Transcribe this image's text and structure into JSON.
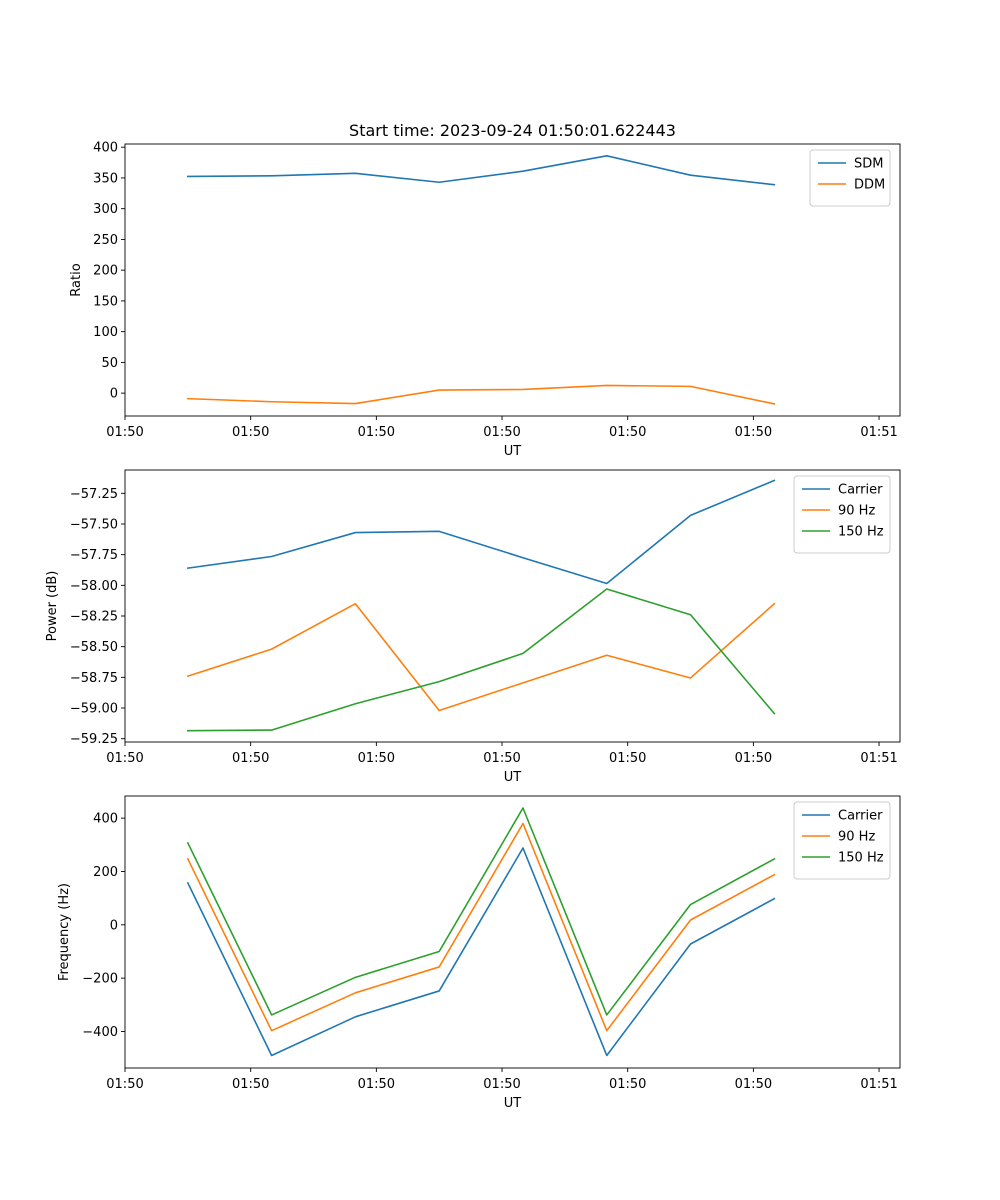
{
  "chart_data": [
    {
      "type": "line",
      "title": "Start time: 2023-09-24 01:50:01.622443",
      "xlabel": "UT",
      "ylabel": "Ratio",
      "x": [
        0.75,
        1.75,
        2.75,
        3.75,
        4.75,
        5.75,
        6.75,
        7.75
      ],
      "xlim": [
        0,
        9.25
      ],
      "xticks": [
        0.0,
        1.5,
        3.0,
        4.5,
        6.0,
        7.5,
        9.0
      ],
      "xtick_labels": [
        "01:50",
        "01:50",
        "01:50",
        "01:50",
        "01:50",
        "01:50",
        "01:51"
      ],
      "ylim": [
        -37.2,
        405.2
      ],
      "yticks": [
        0,
        50,
        100,
        150,
        200,
        250,
        300,
        350,
        400
      ],
      "ytick_labels": [
        "0",
        "50",
        "100",
        "150",
        "200",
        "250",
        "300",
        "350",
        "400"
      ],
      "legend": "top-right",
      "series": [
        {
          "name": "SDM",
          "color": "#1f77b4",
          "values": [
            352.5,
            353.5,
            357.5,
            343,
            361,
            386,
            354.5,
            339
          ]
        },
        {
          "name": "DDM",
          "color": "#ff7f0e",
          "values": [
            -9,
            -14,
            -17,
            5,
            6,
            12.5,
            11,
            -17.5
          ]
        }
      ]
    },
    {
      "type": "line",
      "title": "",
      "xlabel": "UT",
      "ylabel": "Power (dB)",
      "x": [
        0.75,
        1.75,
        2.75,
        3.75,
        4.75,
        5.75,
        6.75,
        7.75
      ],
      "xlim": [
        0,
        9.25
      ],
      "xticks": [
        0.0,
        1.5,
        3.0,
        4.5,
        6.0,
        7.5,
        9.0
      ],
      "xtick_labels": [
        "01:50",
        "01:50",
        "01:50",
        "01:50",
        "01:50",
        "01:50",
        "01:51"
      ],
      "ylim": [
        -59.277,
        -57.06
      ],
      "yticks": [
        -59.25,
        -59.0,
        -58.75,
        -58.5,
        -58.25,
        -58.0,
        -57.75,
        -57.5,
        -57.25
      ],
      "ytick_labels": [
        "−59.25",
        "−59.00",
        "−58.75",
        "−58.50",
        "−58.25",
        "−58.00",
        "−57.75",
        "−57.50",
        "−57.25"
      ],
      "legend": "top-right",
      "series": [
        {
          "name": "Carrier",
          "color": "#1f77b4",
          "values": [
            -57.86,
            -57.765,
            -57.57,
            -57.56,
            -57.775,
            -57.985,
            -57.43,
            -57.145
          ]
        },
        {
          "name": "90 Hz",
          "color": "#ff7f0e",
          "values": [
            -58.74,
            -58.52,
            -58.15,
            -59.02,
            -58.795,
            -58.57,
            -58.755,
            -58.15
          ]
        },
        {
          "name": "150 Hz",
          "color": "#2ca02c",
          "values": [
            -59.185,
            -59.18,
            -58.965,
            -58.785,
            -58.555,
            -58.03,
            -58.24,
            -59.045
          ]
        }
      ]
    },
    {
      "type": "line",
      "title": "",
      "xlabel": "UT",
      "ylabel": "Frequency (Hz)",
      "x": [
        0.75,
        1.75,
        2.75,
        3.75,
        4.75,
        5.75,
        6.75,
        7.75
      ],
      "xlim": [
        0,
        9.25
      ],
      "xticks": [
        0.0,
        1.5,
        3.0,
        4.5,
        6.0,
        7.5,
        9.0
      ],
      "xtick_labels": [
        "01:50",
        "01:50",
        "01:50",
        "01:50",
        "01:50",
        "01:50",
        "01:51"
      ],
      "ylim": [
        -537,
        483
      ],
      "yticks": [
        -400,
        -200,
        0,
        200,
        400
      ],
      "ytick_labels": [
        "−400",
        "−200",
        "0",
        "200",
        "400"
      ],
      "legend": "top-right",
      "series": [
        {
          "name": "Carrier",
          "color": "#1f77b4",
          "values": [
            157,
            -490,
            -345,
            -248,
            288,
            -490,
            -72,
            98
          ]
        },
        {
          "name": "90 Hz",
          "color": "#ff7f0e",
          "values": [
            247,
            -397,
            -255,
            -158,
            380,
            -397,
            18,
            188
          ]
        },
        {
          "name": "150 Hz",
          "color": "#2ca02c",
          "values": [
            307,
            -338,
            -197,
            -100,
            438,
            -338,
            76,
            247
          ]
        }
      ]
    }
  ]
}
